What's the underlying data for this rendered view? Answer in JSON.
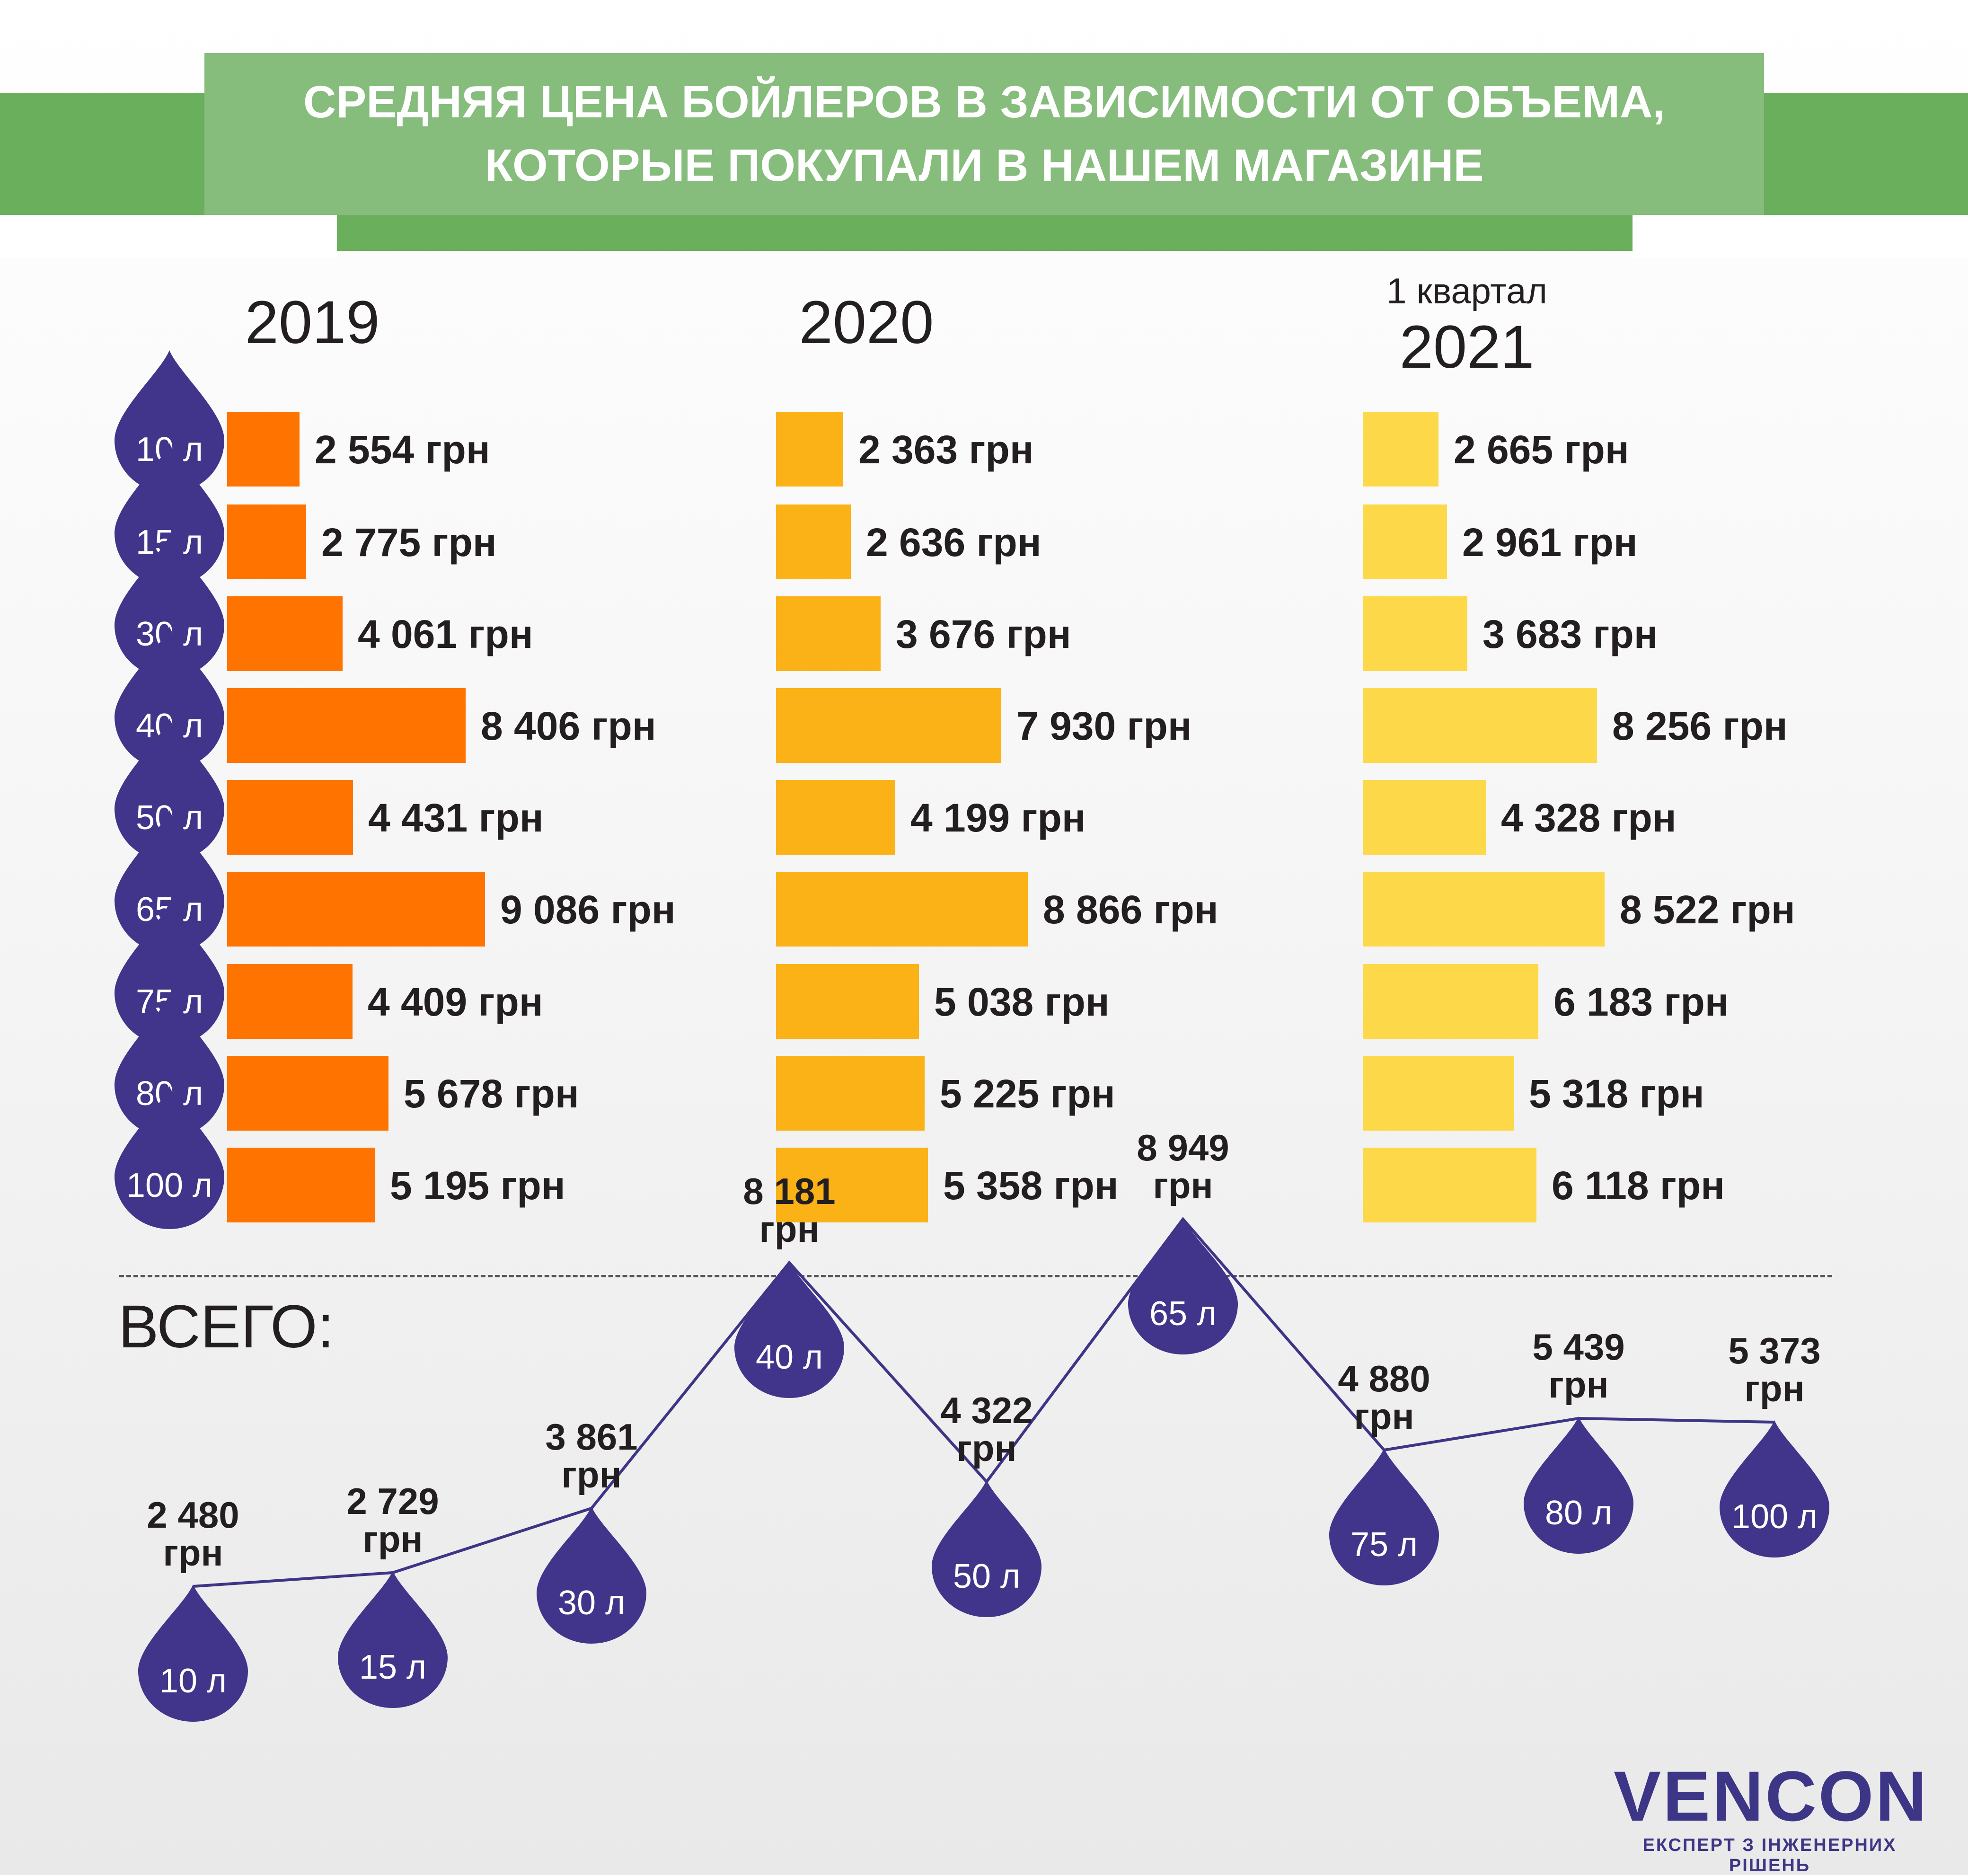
{
  "header": {
    "title_line1": "СРЕДНЯЯ ЦЕНА БОЙЛЕРОВ В ЗАВИСИМОСТИ ОТ ОБЪЕМА,",
    "title_line2": "КОТОРЫЕ ПОКУПАЛИ В НАШЕМ МАГАЗИНЕ"
  },
  "colors": {
    "drop": "#40358a",
    "bar_2019": "#ff7300",
    "bar_2020": "#fbb216",
    "bar_2021": "#fdd94a",
    "banner_front": "#86bc7c",
    "banner_back": "#6aaf5c",
    "line": "#3d3586"
  },
  "chart_data": [
    {
      "type": "bar",
      "orientation": "horizontal",
      "title": "СРЕДНЯЯ ЦЕНА БОЙЛЕРОВ В ЗАВИСИМОСТИ ОТ ОБЪЕМА, КОТОРЫЕ ПОКУПАЛИ В НАШЕМ МАГАЗИНЕ",
      "categories": [
        "10 л",
        "15 л",
        "30 л",
        "40 л",
        "50 л",
        "65 л",
        "75 л",
        "80 л",
        "100 л"
      ],
      "unit": "грн",
      "series": [
        {
          "name": "2019",
          "values": [
            2554,
            2775,
            4061,
            8406,
            4431,
            9086,
            4409,
            5678,
            5195
          ],
          "labels": [
            "2 554 грн",
            "2 775 грн",
            "4 061 грн",
            "8 406 грн",
            "4 431 грн",
            "9 086 грн",
            "4 409 грн",
            "5 678 грн",
            "5 195 грн"
          ]
        },
        {
          "name": "2020",
          "values": [
            2363,
            2636,
            3676,
            7930,
            4199,
            8866,
            5038,
            5225,
            5358
          ],
          "labels": [
            "2 363 грн",
            "2 636 грн",
            "3 676 грн",
            "7 930 грн",
            "4 199 грн",
            "8 866 грн",
            "5 038 грн",
            "5 225 грн",
            "5 358 грн"
          ]
        },
        {
          "name": "2021",
          "subtitle": "1 квартал",
          "values": [
            2665,
            2961,
            3683,
            8256,
            4328,
            8522,
            6183,
            5318,
            6118
          ],
          "labels": [
            "2 665 грн",
            "2 961 грн",
            "3 683 грн",
            "8 256 грн",
            "4 328 грн",
            "8 522 грн",
            "6 183 грн",
            "5 318 грн",
            "6 118 грн"
          ]
        }
      ]
    },
    {
      "type": "line",
      "title": "ВСЕГО:",
      "categories": [
        "10 л",
        "15 л",
        "30 л",
        "40 л",
        "50 л",
        "65 л",
        "75 л",
        "80 л",
        "100 л"
      ],
      "values": [
        2480,
        2729,
        3861,
        8181,
        4322,
        8949,
        4880,
        5439,
        5373
      ],
      "value_labels": [
        "2 480",
        "2 729",
        "3 861",
        "8 181",
        "4 322",
        "8 949",
        "4 880",
        "5 439",
        "5 373"
      ],
      "unit": "грн"
    }
  ],
  "logo": {
    "name": "VENCON",
    "tagline": "ЕКСПЕРТ З ІНЖЕНЕРНИХ РІШЕНЬ"
  }
}
